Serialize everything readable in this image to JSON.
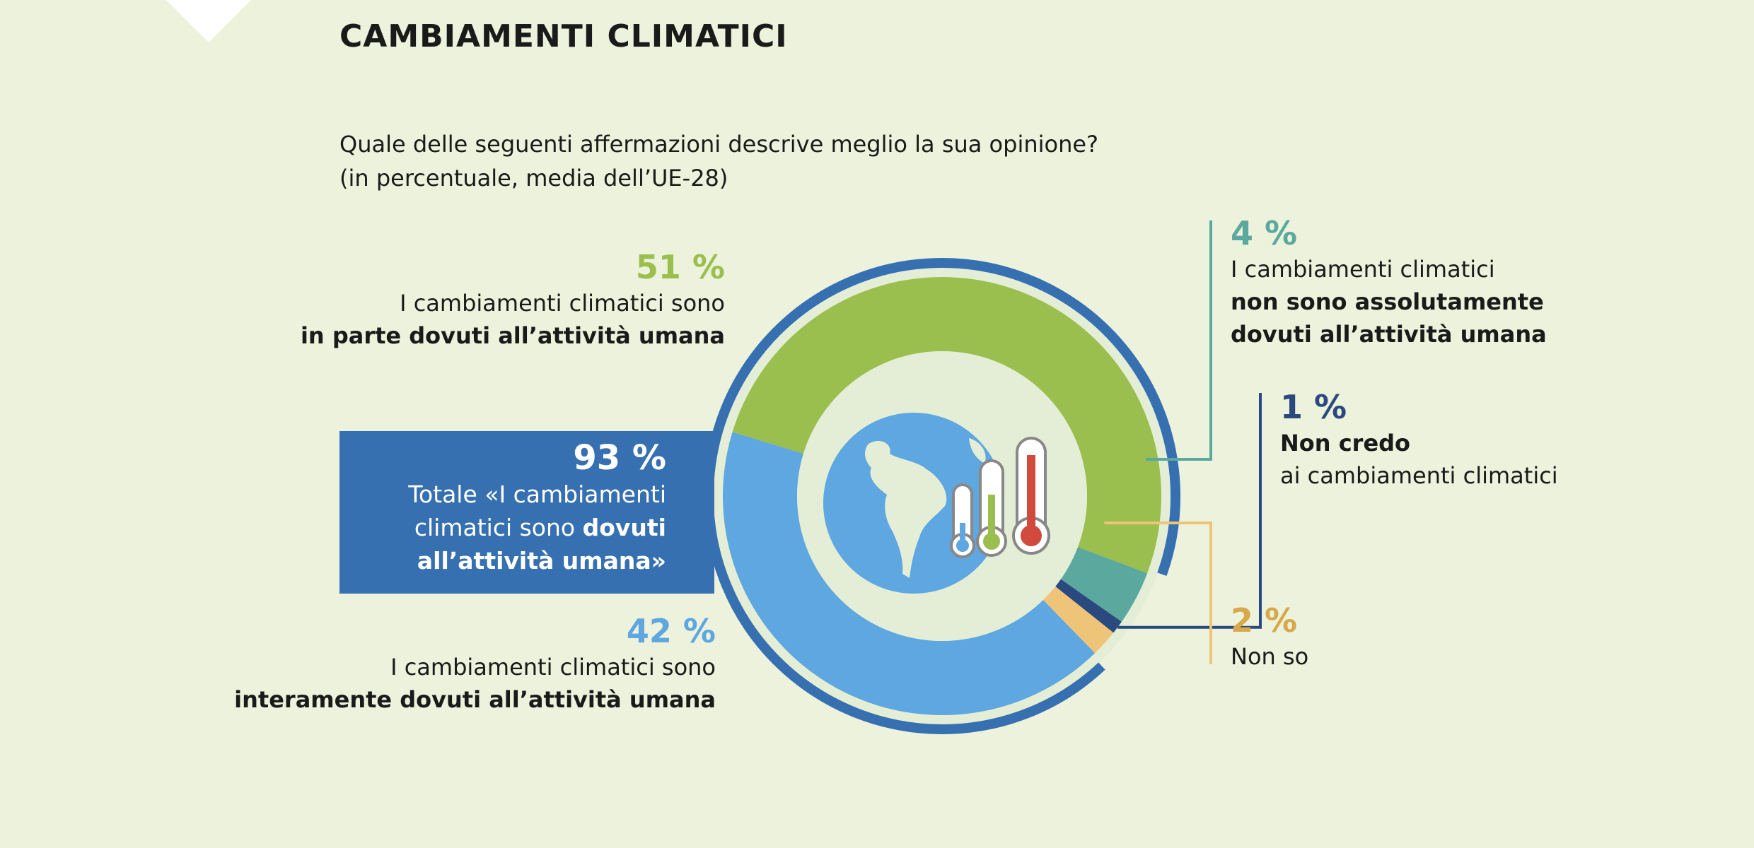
{
  "page": {
    "title": "CAMBIAMENTI CLIMATICI",
    "question_line1": "Quale delle seguenti affermazioni descrive meglio la sua opinione?",
    "question_line2": "(in percentuale, media dell’UE-28)"
  },
  "total_box": {
    "value": "93 %",
    "line1": "Totale «I cambiamenti",
    "line2_plain": "climatici sono ",
    "line2_bold": "dovuti",
    "line3_bold": "all’attività umana»"
  },
  "labels": {
    "partly": {
      "value": "51 %",
      "line1": "I cambiamenti climatici sono",
      "line2": "in parte dovuti all’attività umana"
    },
    "entirely": {
      "value": "42 %",
      "line1": "I cambiamenti climatici sono",
      "line2": "interamente dovuti all’attività umana"
    },
    "not_at_all": {
      "value": "4 %",
      "line1": "I cambiamenti climatici",
      "line2": "non sono assolutamente",
      "line3": "dovuti all’attività umana"
    },
    "dont_believe": {
      "value": "1 %",
      "line1": "Non credo",
      "line2": "ai cambiamenti climatici"
    },
    "dont_know": {
      "value": "2 %",
      "line1": "Non so"
    }
  },
  "colors": {
    "partly": "#9bbf4f",
    "entirely": "#5ea7e0",
    "not_at_all": "#5ba89e",
    "dont_believe": "#2a4a7f",
    "dont_know": "#eec478",
    "outer_ring": "#3670b0",
    "inner_disc": "#e4eed6"
  },
  "chart_data": {
    "type": "pie",
    "categories": [
      "I cambiamenti climatici sono in parte dovuti all’attività umana",
      "I cambiamenti climatici non sono assolutamente dovuti all’attività umana",
      "Non credo ai cambiamenti climatici",
      "Non so",
      "I cambiamenti climatici sono interamente dovuti all’attività umana"
    ],
    "values": [
      51,
      4,
      1,
      2,
      42
    ],
    "total_highlight": {
      "value": 93,
      "of": [
        "in parte dovuti",
        "interamente dovuti"
      ]
    },
    "title": "CAMBIAMENTI CLIMATICI"
  }
}
